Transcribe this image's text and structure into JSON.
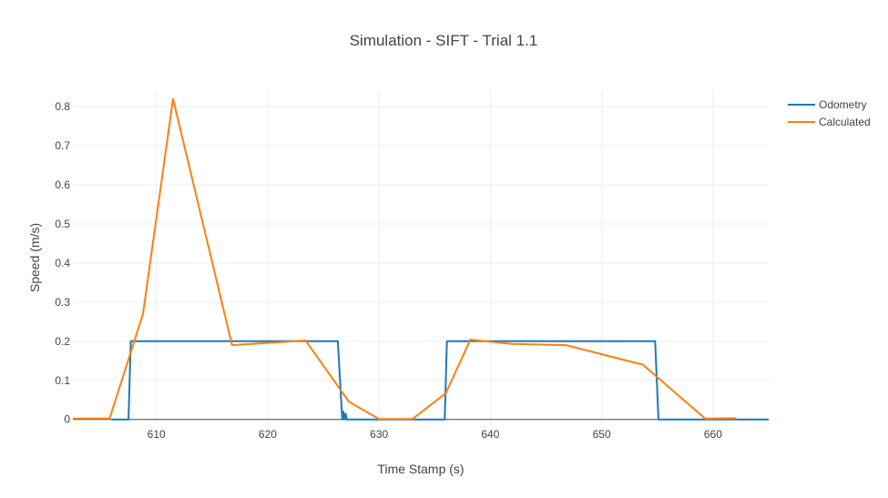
{
  "chart_data": {
    "type": "line",
    "title": "Simulation - SIFT - Trial 1.1",
    "xlabel": "Time Stamp (s)",
    "ylabel": "Speed (m/s)",
    "xlim": [
      602.5,
      665
    ],
    "ylim": [
      -0.01,
      0.84
    ],
    "x_ticks": [
      {
        "value": 610,
        "label": "610"
      },
      {
        "value": 620,
        "label": "620"
      },
      {
        "value": 630,
        "label": "630"
      },
      {
        "value": 640,
        "label": "640"
      },
      {
        "value": 650,
        "label": "650"
      },
      {
        "value": 660,
        "label": "660"
      }
    ],
    "y_ticks": [
      {
        "value": 0,
        "label": "0"
      },
      {
        "value": 0.1,
        "label": "0.1"
      },
      {
        "value": 0.2,
        "label": "0.2"
      },
      {
        "value": 0.3,
        "label": "0.3"
      },
      {
        "value": 0.4,
        "label": "0.4"
      },
      {
        "value": 0.5,
        "label": "0.5"
      },
      {
        "value": 0.6,
        "label": "0.6"
      },
      {
        "value": 0.7,
        "label": "0.7"
      },
      {
        "value": 0.8,
        "label": "0.8"
      }
    ],
    "grid": true,
    "legend_position": "top-right",
    "series": [
      {
        "name": "Odometry",
        "color": "#1f77b4",
        "x": [
          606.0,
          607.5,
          607.7,
          626.3,
          626.7,
          626.8,
          626.9,
          627.0,
          627.1,
          635.9,
          636.1,
          636.2,
          654.8,
          655.1,
          665
        ],
        "y": [
          0,
          0,
          0.2,
          0.2,
          0,
          0.02,
          0,
          0.015,
          0,
          0,
          0.2,
          0.2,
          0.2,
          0,
          0
        ]
      },
      {
        "name": "Calculated",
        "color": "#ff7f0e",
        "x": [
          602.5,
          605.8,
          608.8,
          611.5,
          616.8,
          623.4,
          627.3,
          630.0,
          633.0,
          636.0,
          638.2,
          641.9,
          646.8,
          653.7,
          659.3,
          662.1
        ],
        "y": [
          0.002,
          0.002,
          0.27,
          0.82,
          0.19,
          0.202,
          0.045,
          0.001,
          0.001,
          0.067,
          0.204,
          0.193,
          0.19,
          0.14,
          0.002,
          0.003
        ]
      }
    ]
  }
}
